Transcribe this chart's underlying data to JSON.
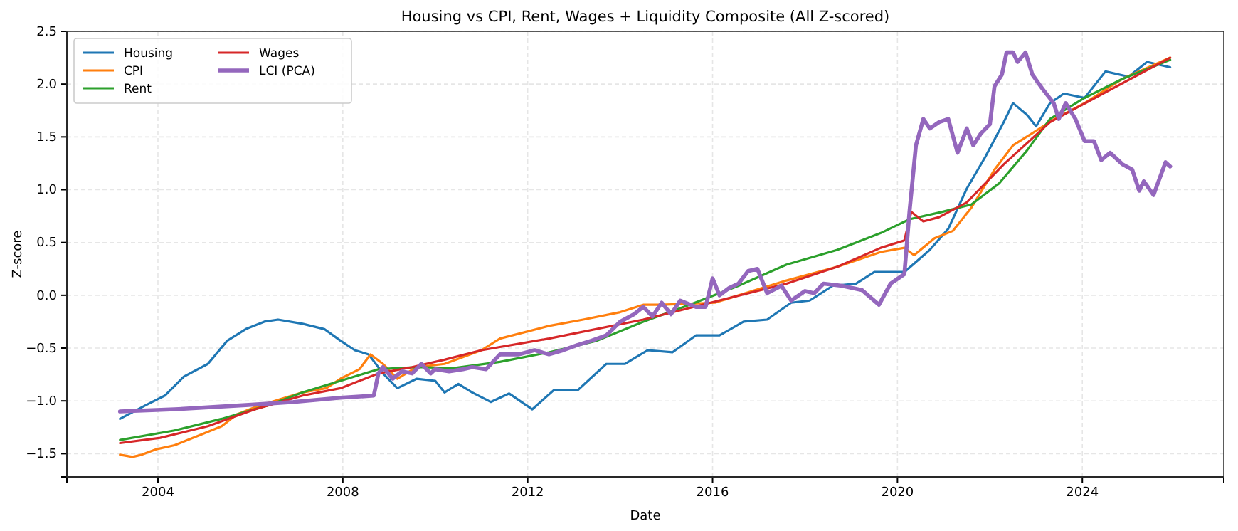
{
  "chart_data": {
    "type": "line",
    "title": "Housing vs CPI, Rent, Wages + Liquidity Composite (All Z-scored)",
    "xlabel": "Date",
    "ylabel": "Z-score",
    "xlim": [
      2002.03,
      2027.06
    ],
    "xticks": [
      2004,
      2008,
      2012,
      2016,
      2020,
      2024
    ],
    "ylim": [
      -1.72,
      2.5
    ],
    "yticks": [
      {
        "value": -1.5,
        "label": "−1.5"
      },
      {
        "value": -1,
        "label": "−1.0"
      },
      {
        "value": -0.5,
        "label": "−0.5"
      },
      {
        "value": 0,
        "label": "0.0"
      },
      {
        "value": 0.5,
        "label": "0.5"
      },
      {
        "value": 1,
        "label": "1.0"
      },
      {
        "value": 1.5,
        "label": "1.5"
      },
      {
        "value": 2,
        "label": "2.0"
      },
      {
        "value": 2.5,
        "label": "2.5"
      }
    ],
    "grid": true,
    "legend": "top left",
    "line_style": "solid",
    "marker": "none",
    "series": [
      {
        "name": "Housing",
        "color": "#1f77b4",
        "x": [
          2003.18,
          2003.74,
          2004.15,
          2004.56,
          2005.08,
          2005.5,
          2005.9,
          2006.3,
          2006.6,
          2007.13,
          2007.6,
          2007.95,
          2008.26,
          2008.56,
          2008.87,
          2009.18,
          2009.6,
          2010.0,
          2010.2,
          2010.5,
          2010.8,
          2011.2,
          2011.6,
          2012.1,
          2012.56,
          2013.08,
          2013.7,
          2014.1,
          2014.6,
          2015.13,
          2015.64,
          2016.15,
          2016.67,
          2017.18,
          2017.7,
          2018.1,
          2018.6,
          2019.1,
          2019.5,
          2020.15,
          2020.7,
          2021.1,
          2021.5,
          2021.9,
          2022.3,
          2022.5,
          2022.8,
          2023.0,
          2023.3,
          2023.6,
          2024.05,
          2024.5,
          2025.0,
          2025.4,
          2025.9
        ],
        "values": [
          -1.17,
          -1.04,
          -0.95,
          -0.77,
          -0.65,
          -0.43,
          -0.32,
          -0.25,
          -0.23,
          -0.27,
          -0.32,
          -0.43,
          -0.52,
          -0.56,
          -0.74,
          -0.88,
          -0.79,
          -0.81,
          -0.92,
          -0.84,
          -0.92,
          -1.01,
          -0.93,
          -1.08,
          -0.9,
          -0.9,
          -0.65,
          -0.65,
          -0.52,
          -0.54,
          -0.38,
          -0.38,
          -0.25,
          -0.23,
          -0.07,
          -0.05,
          0.09,
          0.11,
          0.22,
          0.22,
          0.43,
          0.63,
          1.01,
          1.31,
          1.64,
          1.82,
          1.71,
          1.6,
          1.82,
          1.91,
          1.87,
          2.12,
          2.07,
          2.21,
          2.16
        ]
      },
      {
        "name": "CPI",
        "color": "#ff7f0e",
        "x": [
          2003.18,
          2003.45,
          2003.65,
          2003.95,
          2004.36,
          2004.87,
          2005.38,
          2005.7,
          2006.1,
          2006.6,
          2007.13,
          2007.64,
          2007.95,
          2008.36,
          2008.6,
          2008.87,
          2009.18,
          2009.6,
          2010.2,
          2011.0,
          2011.4,
          2012.46,
          2013.2,
          2014.0,
          2014.5,
          2014.9,
          2016.05,
          2017.6,
          2018.7,
          2019.64,
          2020.15,
          2020.36,
          2020.8,
          2021.2,
          2021.6,
          2022.1,
          2022.5,
          2022.9,
          2023.4,
          2024.05,
          2024.87,
          2025.9
        ],
        "values": [
          -1.51,
          -1.53,
          -1.51,
          -1.46,
          -1.42,
          -1.33,
          -1.24,
          -1.13,
          -1.06,
          -0.99,
          -0.92,
          -0.88,
          -0.79,
          -0.7,
          -0.56,
          -0.65,
          -0.79,
          -0.68,
          -0.65,
          -0.52,
          -0.41,
          -0.29,
          -0.23,
          -0.16,
          -0.09,
          -0.09,
          -0.07,
          0.14,
          0.27,
          0.41,
          0.45,
          0.38,
          0.54,
          0.61,
          0.83,
          1.19,
          1.42,
          1.53,
          1.67,
          1.82,
          2.05,
          2.25
        ]
      },
      {
        "name": "Rent",
        "color": "#2ca02c",
        "x": [
          2003.18,
          2004.36,
          2005.38,
          2006.4,
          2007.13,
          2007.95,
          2008.77,
          2009.6,
          2010.4,
          2011.4,
          2012.46,
          2013.5,
          2014.5,
          2015.5,
          2016.56,
          2017.6,
          2018.7,
          2019.64,
          2020.26,
          2020.97,
          2021.6,
          2022.2,
          2022.8,
          2023.3,
          2024.05,
          2024.87,
          2025.9
        ],
        "values": [
          -1.37,
          -1.28,
          -1.17,
          -1.04,
          -0.92,
          -0.81,
          -0.7,
          -0.68,
          -0.69,
          -0.63,
          -0.54,
          -0.43,
          -0.25,
          -0.09,
          0.09,
          0.29,
          0.43,
          0.59,
          0.72,
          0.79,
          0.86,
          1.06,
          1.37,
          1.67,
          1.87,
          2.05,
          2.23
        ]
      },
      {
        "name": "Wages",
        "color": "#d62728",
        "x": [
          2003.18,
          2004.05,
          2005.08,
          2006.1,
          2007.13,
          2007.95,
          2008.77,
          2009.5,
          2010.2,
          2011.0,
          2012.46,
          2014.5,
          2016.05,
          2017.6,
          2018.7,
          2019.64,
          2020.15,
          2020.3,
          2020.56,
          2020.9,
          2021.5,
          2022.3,
          2023.3,
          2024.36,
          2025.9
        ],
        "values": [
          -1.4,
          -1.35,
          -1.24,
          -1.08,
          -0.95,
          -0.88,
          -0.74,
          -0.68,
          -0.61,
          -0.52,
          -0.41,
          -0.23,
          -0.06,
          0.11,
          0.27,
          0.45,
          0.52,
          0.79,
          0.7,
          0.74,
          0.88,
          1.24,
          1.64,
          1.89,
          2.25
        ]
      },
      {
        "name": "LCI (PCA)",
        "color": "#9467bd",
        "x": [
          2003.18,
          2004.36,
          2005.9,
          2006.93,
          2007.95,
          2008.67,
          2008.77,
          2008.87,
          2009.08,
          2009.28,
          2009.5,
          2009.7,
          2009.9,
          2010.0,
          2010.3,
          2010.6,
          2010.8,
          2011.1,
          2011.4,
          2011.8,
          2012.15,
          2012.46,
          2012.77,
          2013.08,
          2013.38,
          2013.7,
          2014.0,
          2014.3,
          2014.5,
          2014.7,
          2014.9,
          2015.1,
          2015.3,
          2015.64,
          2015.85,
          2016.0,
          2016.15,
          2016.36,
          2016.56,
          2016.77,
          2016.97,
          2017.18,
          2017.49,
          2017.7,
          2018.0,
          2018.2,
          2018.4,
          2018.8,
          2019.23,
          2019.6,
          2019.85,
          2020.15,
          2020.26,
          2020.4,
          2020.56,
          2020.7,
          2020.9,
          2021.1,
          2021.3,
          2021.5,
          2021.64,
          2021.8,
          2022.0,
          2022.1,
          2022.26,
          2022.36,
          2022.5,
          2022.6,
          2022.77,
          2022.92,
          2023.13,
          2023.38,
          2023.49,
          2023.64,
          2023.85,
          2024.05,
          2024.25,
          2024.41,
          2024.6,
          2024.87,
          2025.08,
          2025.23,
          2025.33,
          2025.54,
          2025.8,
          2025.9
        ],
        "values": [
          -1.1,
          -1.08,
          -1.04,
          -1.01,
          -0.97,
          -0.95,
          -0.74,
          -0.68,
          -0.79,
          -0.72,
          -0.74,
          -0.65,
          -0.74,
          -0.7,
          -0.72,
          -0.7,
          -0.68,
          -0.7,
          -0.56,
          -0.56,
          -0.52,
          -0.56,
          -0.52,
          -0.47,
          -0.43,
          -0.38,
          -0.25,
          -0.18,
          -0.11,
          -0.2,
          -0.07,
          -0.18,
          -0.05,
          -0.11,
          -0.11,
          0.16,
          0.0,
          0.07,
          0.11,
          0.23,
          0.25,
          0.02,
          0.09,
          -0.05,
          0.04,
          0.02,
          0.11,
          0.09,
          0.05,
          -0.09,
          0.11,
          0.2,
          0.79,
          1.42,
          1.67,
          1.58,
          1.64,
          1.67,
          1.35,
          1.58,
          1.42,
          1.53,
          1.62,
          1.98,
          2.09,
          2.3,
          2.3,
          2.21,
          2.3,
          2.09,
          1.96,
          1.82,
          1.67,
          1.82,
          1.67,
          1.46,
          1.46,
          1.28,
          1.35,
          1.24,
          1.19,
          0.99,
          1.08,
          0.95,
          1.26,
          1.22
        ]
      }
    ]
  }
}
